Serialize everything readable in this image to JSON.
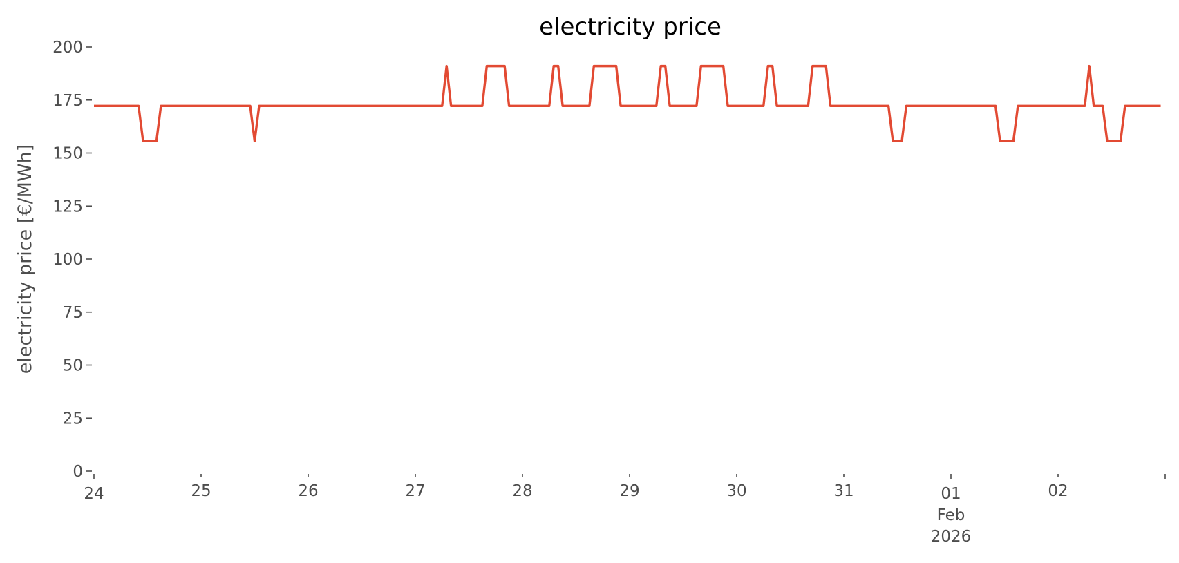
{
  "chart_data": {
    "type": "line",
    "title": "electricity price",
    "xlabel": "",
    "ylabel": "electricity price [€/MWh]",
    "ylim": [
      0,
      200
    ],
    "xlim": [
      "2026-01-24 00:00",
      "2026-02-03 00:00"
    ],
    "grid": false,
    "legend": "none",
    "line_color": "#E24A33",
    "yticks": [
      {
        "value": 0,
        "label": "0"
      },
      {
        "value": 25,
        "label": "25"
      },
      {
        "value": 50,
        "label": "50"
      },
      {
        "value": 75,
        "label": "75"
      },
      {
        "value": 100,
        "label": "100"
      },
      {
        "value": 125,
        "label": "125"
      },
      {
        "value": 150,
        "label": "150"
      },
      {
        "value": 175,
        "label": "175"
      },
      {
        "value": 200,
        "label": "200"
      }
    ],
    "xticks": [
      {
        "date": "2026-01-24 00:00",
        "label": [
          "24"
        ],
        "major": true
      },
      {
        "date": "2026-01-25 00:00",
        "label": [
          "25"
        ]
      },
      {
        "date": "2026-01-26 00:00",
        "label": [
          "26"
        ]
      },
      {
        "date": "2026-01-27 00:00",
        "label": [
          "27"
        ]
      },
      {
        "date": "2026-01-28 00:00",
        "label": [
          "28"
        ]
      },
      {
        "date": "2026-01-29 00:00",
        "label": [
          "29"
        ]
      },
      {
        "date": "2026-01-30 00:00",
        "label": [
          "30"
        ]
      },
      {
        "date": "2026-01-31 00:00",
        "label": [
          "31"
        ]
      },
      {
        "date": "2026-02-01 00:00",
        "label": [
          "01",
          "Feb",
          "2026"
        ],
        "major": true
      },
      {
        "date": "2026-02-02 00:00",
        "label": [
          "02"
        ]
      },
      {
        "date": "2026-02-03 00:00",
        "label": [],
        "major": true
      }
    ],
    "series": [
      {
        "points": [
          [
            "2026-01-24 00:00",
            172.2
          ],
          [
            "2026-01-24 10:00",
            172.2
          ],
          [
            "2026-01-24 11:00",
            155.6
          ],
          [
            "2026-01-24 14:00",
            155.6
          ],
          [
            "2026-01-24 15:00",
            172.2
          ],
          [
            "2026-01-25 11:00",
            172.2
          ],
          [
            "2026-01-25 12:00",
            155.6
          ],
          [
            "2026-01-25 13:00",
            172.2
          ],
          [
            "2026-01-27 06:00",
            172.2
          ],
          [
            "2026-01-27 07:00",
            191.0
          ],
          [
            "2026-01-27 08:00",
            172.2
          ],
          [
            "2026-01-27 15:00",
            172.2
          ],
          [
            "2026-01-27 16:00",
            191.0
          ],
          [
            "2026-01-27 20:00",
            191.0
          ],
          [
            "2026-01-27 21:00",
            172.2
          ],
          [
            "2026-01-28 06:00",
            172.2
          ],
          [
            "2026-01-28 07:00",
            191.0
          ],
          [
            "2026-01-28 08:00",
            191.0
          ],
          [
            "2026-01-28 09:00",
            172.2
          ],
          [
            "2026-01-28 15:00",
            172.2
          ],
          [
            "2026-01-28 16:00",
            191.0
          ],
          [
            "2026-01-28 21:00",
            191.0
          ],
          [
            "2026-01-28 22:00",
            172.2
          ],
          [
            "2026-01-29 06:00",
            172.2
          ],
          [
            "2026-01-29 07:00",
            191.0
          ],
          [
            "2026-01-29 08:00",
            191.0
          ],
          [
            "2026-01-29 09:00",
            172.2
          ],
          [
            "2026-01-29 15:00",
            172.2
          ],
          [
            "2026-01-29 16:00",
            191.0
          ],
          [
            "2026-01-29 21:00",
            191.0
          ],
          [
            "2026-01-29 22:00",
            172.2
          ],
          [
            "2026-01-30 06:00",
            172.2
          ],
          [
            "2026-01-30 07:00",
            191.0
          ],
          [
            "2026-01-30 08:00",
            191.0
          ],
          [
            "2026-01-30 09:00",
            172.2
          ],
          [
            "2026-01-30 16:00",
            172.2
          ],
          [
            "2026-01-30 17:00",
            191.0
          ],
          [
            "2026-01-30 20:00",
            191.0
          ],
          [
            "2026-01-30 21:00",
            172.2
          ],
          [
            "2026-01-31 10:00",
            172.2
          ],
          [
            "2026-01-31 11:00",
            155.6
          ],
          [
            "2026-01-31 13:00",
            155.6
          ],
          [
            "2026-01-31 14:00",
            172.2
          ],
          [
            "2026-02-01 10:00",
            172.2
          ],
          [
            "2026-02-01 11:00",
            155.6
          ],
          [
            "2026-02-01 14:00",
            155.6
          ],
          [
            "2026-02-01 15:00",
            172.2
          ],
          [
            "2026-02-02 06:00",
            172.2
          ],
          [
            "2026-02-02 07:00",
            191.0
          ],
          [
            "2026-02-02 08:00",
            172.2
          ],
          [
            "2026-02-02 10:00",
            172.2
          ],
          [
            "2026-02-02 11:00",
            155.6
          ],
          [
            "2026-02-02 14:00",
            155.6
          ],
          [
            "2026-02-02 15:00",
            172.2
          ],
          [
            "2026-02-02 23:00",
            172.2
          ]
        ]
      }
    ]
  }
}
